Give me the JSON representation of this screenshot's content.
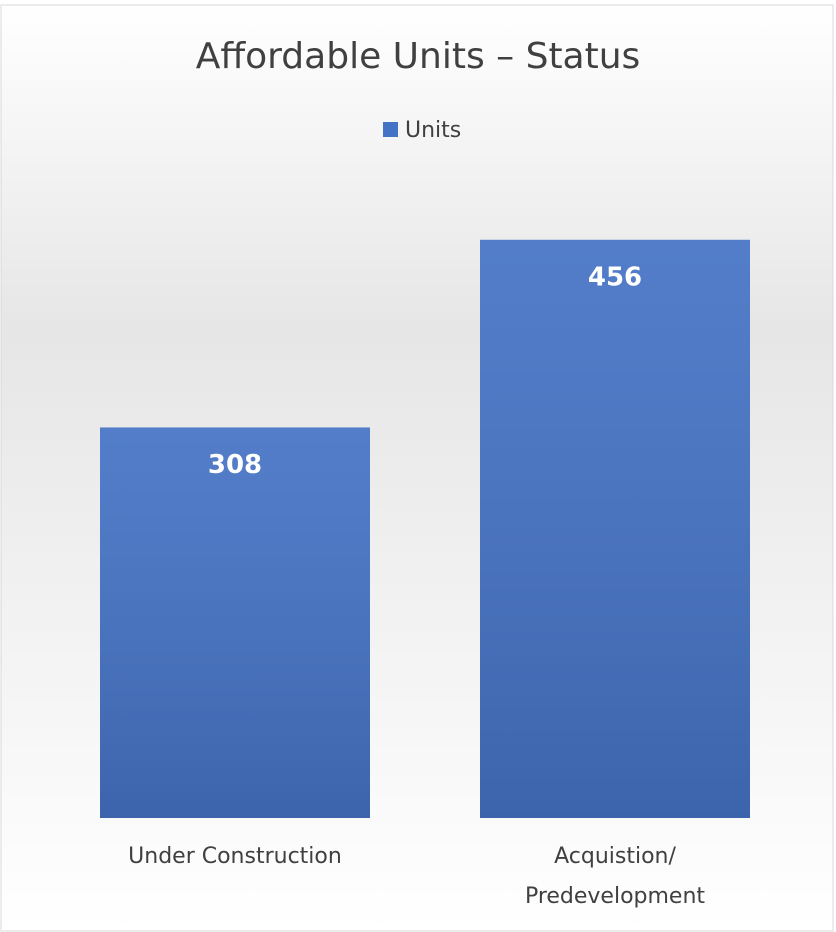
{
  "chart_data": {
    "type": "bar",
    "title": "Affordable Units – Status",
    "categories": [
      "Under Construction",
      "Acquistion/ Predevelopment"
    ],
    "series": [
      {
        "name": "Units",
        "color": "#4472c4",
        "values": [
          308,
          456
        ]
      }
    ],
    "ylim": [
      0,
      500
    ]
  }
}
